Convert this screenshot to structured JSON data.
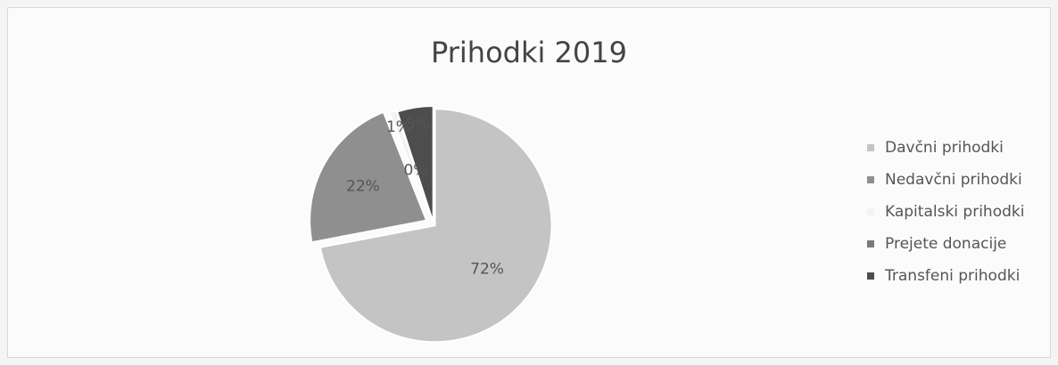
{
  "chart_data": {
    "type": "pie",
    "title": "Prihodki 2019",
    "categories": [
      "Davčni prihodki",
      "Nedavčni prihodki",
      "Kapitalski prihodki",
      "Prejete donacije",
      "Transfeni prihodki"
    ],
    "values": [
      72,
      22,
      1,
      0,
      5
    ],
    "data_labels": [
      "72%",
      "22%",
      "1%",
      "0%",
      "5%"
    ],
    "colors": [
      "#c4c4c4",
      "#8f8f8f",
      "#f2f2f2",
      "#7a7a7a",
      "#4d4d4d"
    ],
    "legend_position": "right"
  }
}
